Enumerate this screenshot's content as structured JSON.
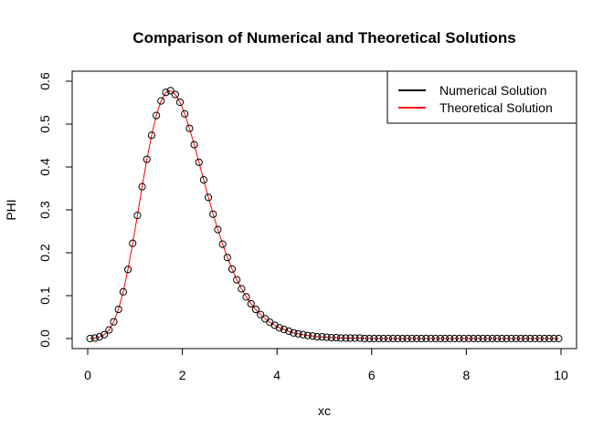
{
  "chart_data": {
    "type": "line",
    "title": "Comparison of Numerical and Theoretical Solutions",
    "xlabel": "xc",
    "ylabel": "PHI",
    "xlim": [
      0,
      10
    ],
    "ylim": [
      0,
      0.6
    ],
    "x_ticks": [
      "0",
      "2",
      "4",
      "6",
      "8",
      "10"
    ],
    "y_ticks": [
      "0.0",
      "0.1",
      "0.2",
      "0.3",
      "0.4",
      "0.5",
      "0.6"
    ],
    "legend_position": "top-right",
    "grid": false,
    "series": [
      {
        "name": "Numerical Solution",
        "style": "points",
        "color": "#000000",
        "x": [
          0.05,
          0.15,
          0.25,
          0.35,
          0.45,
          0.55,
          0.65,
          0.75,
          0.85,
          0.95,
          1.05,
          1.15,
          1.25,
          1.35,
          1.45,
          1.55,
          1.65,
          1.75,
          1.85,
          1.95,
          2.05,
          2.15,
          2.25,
          2.35,
          2.45,
          2.55,
          2.65,
          2.75,
          2.85,
          2.95,
          3.05,
          3.15,
          3.25,
          3.35,
          3.45,
          3.55,
          3.65,
          3.75,
          3.85,
          3.95,
          4.05,
          4.15,
          4.25,
          4.35,
          4.45,
          4.55,
          4.65,
          4.75,
          4.85,
          4.95,
          5.05,
          5.15,
          5.25,
          5.35,
          5.45,
          5.55,
          5.65,
          5.75,
          5.85,
          5.95,
          6.05,
          6.15,
          6.25,
          6.35,
          6.45,
          6.55,
          6.65,
          6.75,
          6.85,
          6.95,
          7.05,
          7.15,
          7.25,
          7.35,
          7.45,
          7.55,
          7.65,
          7.75,
          7.85,
          7.95,
          8.05,
          8.15,
          8.25,
          8.35,
          8.45,
          8.55,
          8.65,
          8.75,
          8.85,
          8.95,
          9.05,
          9.15,
          9.25,
          9.35,
          9.45,
          9.55,
          9.65,
          9.75,
          9.85,
          9.95
        ],
        "y": [
          0.0,
          0.001,
          0.004,
          0.009,
          0.02,
          0.039,
          0.068,
          0.109,
          0.161,
          0.222,
          0.287,
          0.354,
          0.418,
          0.474,
          0.52,
          0.554,
          0.574,
          0.578,
          0.569,
          0.551,
          0.524,
          0.49,
          0.452,
          0.411,
          0.37,
          0.329,
          0.29,
          0.254,
          0.22,
          0.189,
          0.162,
          0.137,
          0.116,
          0.097,
          0.081,
          0.068,
          0.056,
          0.046,
          0.038,
          0.031,
          0.025,
          0.021,
          0.017,
          0.013,
          0.011,
          0.009,
          0.007,
          0.006,
          0.004,
          0.004,
          0.003,
          0.002,
          0.002,
          0.001,
          0.001,
          0.001,
          0.001,
          0.001,
          0.0,
          0.0,
          0.0,
          0.0,
          0.0,
          0.0,
          0.0,
          0.0,
          0.0,
          0.0,
          0.0,
          0.0,
          0.0,
          0.0,
          0.0,
          0.0,
          0.0,
          0.0,
          0.0,
          0.0,
          0.0,
          0.0,
          0.0,
          0.0,
          0.0,
          0.0,
          0.0,
          0.0,
          0.0,
          0.0,
          0.0,
          0.0,
          0.0,
          0.0,
          0.0,
          0.0,
          0.0,
          0.0,
          0.0,
          0.0,
          0.0,
          0.0
        ]
      },
      {
        "name": "Theoretical Solution",
        "style": "line",
        "color": "#ff0000",
        "x": [
          0.05,
          0.15,
          0.25,
          0.35,
          0.45,
          0.55,
          0.65,
          0.75,
          0.85,
          0.95,
          1.05,
          1.15,
          1.25,
          1.35,
          1.45,
          1.55,
          1.65,
          1.75,
          1.85,
          1.95,
          2.05,
          2.15,
          2.25,
          2.35,
          2.45,
          2.55,
          2.65,
          2.75,
          2.85,
          2.95,
          3.05,
          3.15,
          3.25,
          3.35,
          3.45,
          3.55,
          3.65,
          3.75,
          3.85,
          3.95,
          4.05,
          4.15,
          4.25,
          4.35,
          4.45,
          4.55,
          4.65,
          4.75,
          4.85,
          4.95,
          5.05,
          5.15,
          5.25,
          5.35,
          5.45,
          5.55,
          5.65,
          5.75,
          5.85,
          5.95,
          6.05,
          6.15,
          6.25,
          6.35,
          6.45,
          6.55,
          6.65,
          6.75,
          6.85,
          6.95,
          7.05,
          7.15,
          7.25,
          7.35,
          7.45,
          7.55,
          7.65,
          7.75,
          7.85,
          7.95,
          8.05,
          8.15,
          8.25,
          8.35,
          8.45,
          8.55,
          8.65,
          8.75,
          8.85,
          8.95,
          9.05,
          9.15,
          9.25,
          9.35,
          9.45,
          9.55,
          9.65,
          9.75,
          9.85,
          9.95
        ],
        "y": [
          0.0,
          0.001,
          0.004,
          0.009,
          0.02,
          0.039,
          0.068,
          0.109,
          0.161,
          0.222,
          0.287,
          0.354,
          0.418,
          0.474,
          0.52,
          0.554,
          0.574,
          0.578,
          0.569,
          0.551,
          0.524,
          0.49,
          0.452,
          0.411,
          0.37,
          0.329,
          0.29,
          0.254,
          0.22,
          0.189,
          0.162,
          0.137,
          0.116,
          0.097,
          0.081,
          0.068,
          0.056,
          0.046,
          0.038,
          0.031,
          0.025,
          0.021,
          0.017,
          0.013,
          0.011,
          0.009,
          0.007,
          0.006,
          0.004,
          0.004,
          0.003,
          0.002,
          0.002,
          0.001,
          0.001,
          0.001,
          0.001,
          0.001,
          0.0,
          0.0,
          0.0,
          0.0,
          0.0,
          0.0,
          0.0,
          0.0,
          0.0,
          0.0,
          0.0,
          0.0,
          0.0,
          0.0,
          0.0,
          0.0,
          0.0,
          0.0,
          0.0,
          0.0,
          0.0,
          0.0,
          0.0,
          0.0,
          0.0,
          0.0,
          0.0,
          0.0,
          0.0,
          0.0,
          0.0,
          0.0,
          0.0,
          0.0,
          0.0,
          0.0,
          0.0,
          0.0,
          0.0,
          0.0,
          0.0,
          0.0
        ]
      }
    ]
  }
}
